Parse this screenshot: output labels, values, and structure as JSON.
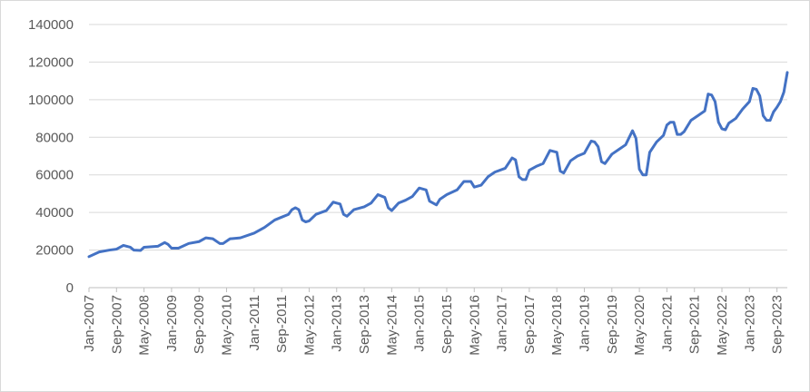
{
  "chart_data": {
    "type": "line",
    "title": "",
    "xlabel": "",
    "ylabel": "",
    "ylim": [
      0,
      140000
    ],
    "y_ticks": [
      "0",
      "20000",
      "40000",
      "60000",
      "80000",
      "100000",
      "120000",
      "140000"
    ],
    "x_tick_labels": [
      "Jan-2007",
      "Sep-2007",
      "May-2008",
      "Jan-2009",
      "Sep-2009",
      "May-2010",
      "Jan-2011",
      "Sep-2011",
      "May-2012",
      "Jan-2013",
      "Sep-2013",
      "May-2014",
      "Jan-2015",
      "Sep-2015",
      "May-2016",
      "Jan-2017",
      "Sep-2017",
      "May-2018",
      "Jan-2019",
      "Sep-2019",
      "May-2020",
      "Jan-2021",
      "Sep-2021",
      "May-2022",
      "Jan-2023",
      "Sep-2023"
    ],
    "x_range": [
      "Jan-2007",
      "Dec-2023"
    ],
    "grid": "horizontal",
    "legend": "none",
    "series_color": "#4472c4",
    "series": [
      {
        "name": "",
        "points": [
          [
            "Jan-2007",
            16500
          ],
          [
            "Apr-2007",
            19000
          ],
          [
            "Jul-2007",
            20000
          ],
          [
            "Sep-2007",
            20500
          ],
          [
            "Nov-2007",
            22500
          ],
          [
            "Jan-2008",
            21500
          ],
          [
            "Feb-2008",
            20000
          ],
          [
            "Apr-2008",
            19800
          ],
          [
            "May-2008",
            21500
          ],
          [
            "Sep-2008",
            22000
          ],
          [
            "Nov-2008",
            24000
          ],
          [
            "Dec-2008",
            23000
          ],
          [
            "Jan-2009",
            21000
          ],
          [
            "Mar-2009",
            21000
          ],
          [
            "Jun-2009",
            23500
          ],
          [
            "Sep-2009",
            24500
          ],
          [
            "Nov-2009",
            26500
          ],
          [
            "Jan-2010",
            26000
          ],
          [
            "Mar-2010",
            23500
          ],
          [
            "Apr-2010",
            23500
          ],
          [
            "Jun-2010",
            26000
          ],
          [
            "Sep-2010",
            26500
          ],
          [
            "Jan-2011",
            29000
          ],
          [
            "Apr-2011",
            32000
          ],
          [
            "Jul-2011",
            36000
          ],
          [
            "Sep-2011",
            37500
          ],
          [
            "Nov-2011",
            39000
          ],
          [
            "Dec-2011",
            41500
          ],
          [
            "Jan-2012",
            42500
          ],
          [
            "Feb-2012",
            41500
          ],
          [
            "Mar-2012",
            36000
          ],
          [
            "Apr-2012",
            35000
          ],
          [
            "May-2012",
            35500
          ],
          [
            "Jul-2012",
            39000
          ],
          [
            "Oct-2012",
            41000
          ],
          [
            "Dec-2012",
            45500
          ],
          [
            "Jan-2013",
            45000
          ],
          [
            "Feb-2013",
            44500
          ],
          [
            "Mar-2013",
            39000
          ],
          [
            "Apr-2013",
            38000
          ],
          [
            "Jun-2013",
            41500
          ],
          [
            "Sep-2013",
            43000
          ],
          [
            "Nov-2013",
            45000
          ],
          [
            "Jan-2014",
            49500
          ],
          [
            "Mar-2014",
            48000
          ],
          [
            "Apr-2014",
            42500
          ],
          [
            "May-2014",
            41000
          ],
          [
            "Jul-2014",
            45000
          ],
          [
            "Sep-2014",
            46500
          ],
          [
            "Nov-2014",
            48500
          ],
          [
            "Jan-2015",
            53000
          ],
          [
            "Mar-2015",
            52000
          ],
          [
            "Apr-2015",
            46000
          ],
          [
            "Jun-2015",
            44000
          ],
          [
            "Jul-2015",
            47000
          ],
          [
            "Sep-2015",
            49500
          ],
          [
            "Dec-2015",
            52000
          ],
          [
            "Feb-2016",
            56500
          ],
          [
            "Apr-2016",
            56500
          ],
          [
            "May-2016",
            53500
          ],
          [
            "Jul-2016",
            54500
          ],
          [
            "Sep-2016",
            59000
          ],
          [
            "Nov-2016",
            61500
          ],
          [
            "Feb-2017",
            63500
          ],
          [
            "Apr-2017",
            69000
          ],
          [
            "May-2017",
            68000
          ],
          [
            "Jun-2017",
            59000
          ],
          [
            "Jul-2017",
            57500
          ],
          [
            "Aug-2017",
            57500
          ],
          [
            "Sep-2017",
            62500
          ],
          [
            "Nov-2017",
            64500
          ],
          [
            "Jan-2018",
            66000
          ],
          [
            "Mar-2018",
            73000
          ],
          [
            "May-2018",
            72000
          ],
          [
            "Jun-2018",
            62000
          ],
          [
            "Jul-2018",
            61000
          ],
          [
            "Sep-2018",
            67500
          ],
          [
            "Nov-2018",
            70000
          ],
          [
            "Jan-2019",
            71500
          ],
          [
            "Mar-2019",
            78000
          ],
          [
            "Apr-2019",
            77500
          ],
          [
            "May-2019",
            75000
          ],
          [
            "Jun-2019",
            67000
          ],
          [
            "Jul-2019",
            66000
          ],
          [
            "Sep-2019",
            71000
          ],
          [
            "Nov-2019",
            73500
          ],
          [
            "Jan-2020",
            76000
          ],
          [
            "Mar-2020",
            83500
          ],
          [
            "Apr-2020",
            79500
          ],
          [
            "May-2020",
            63000
          ],
          [
            "Jun-2020",
            60000
          ],
          [
            "Jul-2020",
            60000
          ],
          [
            "Aug-2020",
            72000
          ],
          [
            "Oct-2020",
            77500
          ],
          [
            "Dec-2020",
            81000
          ],
          [
            "Jan-2021",
            86500
          ],
          [
            "Feb-2021",
            88000
          ],
          [
            "Mar-2021",
            88000
          ],
          [
            "Apr-2021",
            81500
          ],
          [
            "May-2021",
            81500
          ],
          [
            "Jun-2021",
            83000
          ],
          [
            "Aug-2021",
            89000
          ],
          [
            "Oct-2021",
            91500
          ],
          [
            "Dec-2021",
            94000
          ],
          [
            "Jan-2022",
            103000
          ],
          [
            "Feb-2022",
            102500
          ],
          [
            "Mar-2022",
            99000
          ],
          [
            "Apr-2022",
            88000
          ],
          [
            "May-2022",
            84500
          ],
          [
            "Jun-2022",
            84000
          ],
          [
            "Jul-2022",
            87500
          ],
          [
            "Sep-2022",
            90000
          ],
          [
            "Nov-2022",
            95000
          ],
          [
            "Jan-2023",
            99000
          ],
          [
            "Feb-2023",
            106000
          ],
          [
            "Mar-2023",
            105500
          ],
          [
            "Apr-2023",
            102000
          ],
          [
            "May-2023",
            91500
          ],
          [
            "Jun-2023",
            89000
          ],
          [
            "Jul-2023",
            89000
          ],
          [
            "Aug-2023",
            93500
          ],
          [
            "Sep-2023",
            96000
          ],
          [
            "Oct-2023",
            99000
          ],
          [
            "Nov-2023",
            104000
          ],
          [
            "Dec-2023",
            114500
          ]
        ]
      }
    ]
  }
}
